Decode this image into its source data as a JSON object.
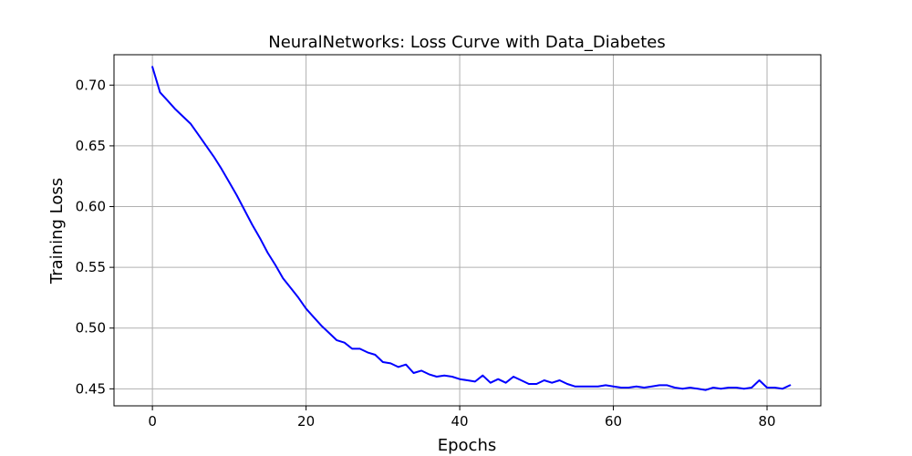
{
  "chart_data": {
    "type": "line",
    "title": "NeuralNetworks: Loss Curve with Data_Diabetes",
    "xlabel": "Epochs",
    "ylabel": "Training Loss",
    "xlim": [
      -5,
      87
    ],
    "ylim": [
      0.436,
      0.725
    ],
    "xticks": [
      0,
      20,
      40,
      60,
      80
    ],
    "xtick_labels": [
      "0",
      "20",
      "40",
      "60",
      "80"
    ],
    "yticks": [
      0.45,
      0.5,
      0.55,
      0.6,
      0.65,
      0.7
    ],
    "ytick_labels": [
      "0.45",
      "0.50",
      "0.55",
      "0.60",
      "0.65",
      "0.70"
    ],
    "grid": true,
    "series": [
      {
        "color": "#0000ff",
        "x": [
          0,
          1,
          2,
          3,
          4,
          5,
          6,
          7,
          8,
          9,
          10,
          11,
          12,
          13,
          14,
          15,
          16,
          17,
          18,
          19,
          20,
          21,
          22,
          23,
          24,
          25,
          26,
          27,
          28,
          29,
          30,
          31,
          32,
          33,
          34,
          35,
          36,
          37,
          38,
          39,
          40,
          41,
          42,
          43,
          44,
          45,
          46,
          47,
          48,
          49,
          50,
          51,
          52,
          53,
          54,
          55,
          56,
          57,
          58,
          59,
          60,
          61,
          62,
          63,
          64,
          65,
          66,
          67,
          68,
          69,
          70,
          71,
          72,
          73,
          74,
          75,
          76,
          77,
          78,
          79,
          80,
          81,
          82,
          83
        ],
        "y": [
          0.715,
          0.694,
          0.687,
          0.68,
          0.674,
          0.668,
          0.659,
          0.65,
          0.641,
          0.631,
          0.62,
          0.609,
          0.597,
          0.585,
          0.574,
          0.562,
          0.552,
          0.541,
          0.533,
          0.525,
          0.516,
          0.509,
          0.502,
          0.496,
          0.49,
          0.488,
          0.483,
          0.483,
          0.48,
          0.478,
          0.472,
          0.471,
          0.468,
          0.47,
          0.463,
          0.465,
          0.462,
          0.46,
          0.461,
          0.46,
          0.458,
          0.457,
          0.456,
          0.461,
          0.455,
          0.458,
          0.455,
          0.46,
          0.457,
          0.454,
          0.454,
          0.457,
          0.455,
          0.457,
          0.454,
          0.452,
          0.452,
          0.452,
          0.452,
          0.453,
          0.452,
          0.451,
          0.451,
          0.452,
          0.451,
          0.452,
          0.453,
          0.453,
          0.451,
          0.45,
          0.451,
          0.45,
          0.449,
          0.451,
          0.45,
          0.451,
          0.451,
          0.45,
          0.451,
          0.457,
          0.451,
          0.451,
          0.45,
          0.453
        ]
      }
    ]
  }
}
